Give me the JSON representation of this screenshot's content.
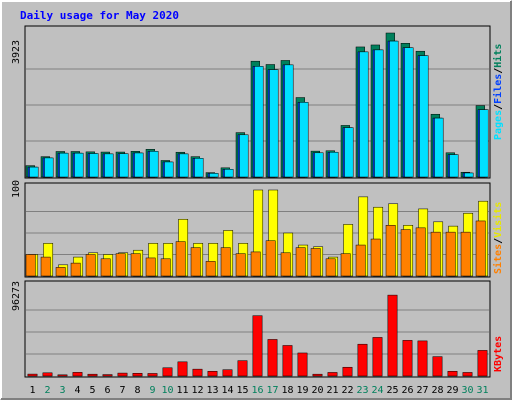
{
  "chart_data": {
    "title": "Daily usage for May 2020",
    "days": [
      "1",
      "2",
      "3",
      "4",
      "5",
      "6",
      "7",
      "8",
      "9",
      "10",
      "11",
      "12",
      "13",
      "14",
      "15",
      "16",
      "17",
      "18",
      "19",
      "20",
      "21",
      "22",
      "23",
      "24",
      "25",
      "26",
      "27",
      "28",
      "29",
      "30",
      "31"
    ],
    "weekend_days": [
      "2",
      "3",
      "9",
      "10",
      "16",
      "17",
      "23",
      "24",
      "30",
      "31"
    ],
    "panels": [
      {
        "type": "bar",
        "ymax": 3923,
        "ymax_label": "3923",
        "series": [
          {
            "name": "Hits",
            "color": "#00805c",
            "values": [
              310,
              555,
              695,
              695,
              685,
              680,
              680,
              700,
              755,
              450,
              675,
              555,
              120,
              250,
              1210,
              3155,
              3065,
              3175,
              2165,
              705,
              715,
              1405,
              3543,
              3597,
              3923,
              3643,
              3427,
              1710,
              660,
              130,
              1945
            ]
          },
          {
            "name": "Files",
            "color": "#0040ff",
            "values": [
              270,
              520,
              650,
              650,
              640,
              630,
              635,
              655,
              700,
              410,
              630,
              510,
              100,
              210,
              1150,
              3015,
              2925,
              3055,
              2035,
              660,
              675,
              1345,
              3409,
              3463,
              3703,
              3523,
              3307,
              1605,
              610,
              110,
              1835
            ]
          },
          {
            "name": "Pages",
            "color": "#00e0ff",
            "values": [
              270,
              520,
              650,
              650,
              640,
              630,
              635,
              655,
              700,
              410,
              630,
              510,
              100,
              210,
              1150,
              3015,
              2925,
              3055,
              2035,
              660,
              675,
              1345,
              3409,
              3463,
              3703,
              3523,
              3307,
              1605,
              610,
              110,
              1835
            ]
          }
        ],
        "legend": [
          "Pages",
          "/",
          "Files",
          "/",
          "Hits"
        ]
      },
      {
        "type": "bar",
        "ymax": 100,
        "ymax_label": "100",
        "series": [
          {
            "name": "Visits",
            "color": "#ffff00",
            "values": [
              25,
              38,
              13,
              22,
              27,
              25,
              27,
              30,
              38,
              38,
              66,
              38,
              38,
              53,
              38,
              100,
              100,
              50,
              36,
              34,
              22,
              60,
              92,
              80,
              84,
              59,
              78,
              63,
              58,
              73,
              87
            ]
          },
          {
            "name": "Sites",
            "color": "#ff8000",
            "values": [
              25,
              22,
              10,
              15,
              25,
              20,
              26,
              26,
              21,
              20,
              40,
              33,
              17,
              33,
              26,
              28,
              41,
              27,
              33,
              32,
              20,
              26,
              36,
              43,
              59,
              54,
              56,
              51,
              51,
              51,
              64
            ]
          }
        ],
        "legend": [
          "Sites",
          "/",
          "Visits"
        ]
      },
      {
        "type": "bar",
        "ymax": 96273,
        "ymax_label": "96273",
        "series": [
          {
            "name": "KBytes",
            "color": "#ff0000",
            "values": [
              2100,
              3500,
              1300,
              4000,
              2000,
              1600,
              3200,
              3000,
              2800,
              9000,
              15500,
              7500,
              5200,
              6900,
              16800,
              66000,
              40000,
              33400,
              25200,
              2000,
              3900,
              9600,
              34800,
              42200,
              88500,
              39000,
              38400,
              21200,
              5200,
              3900,
              28000
            ]
          }
        ],
        "legend": [
          "KBytes"
        ]
      }
    ]
  }
}
